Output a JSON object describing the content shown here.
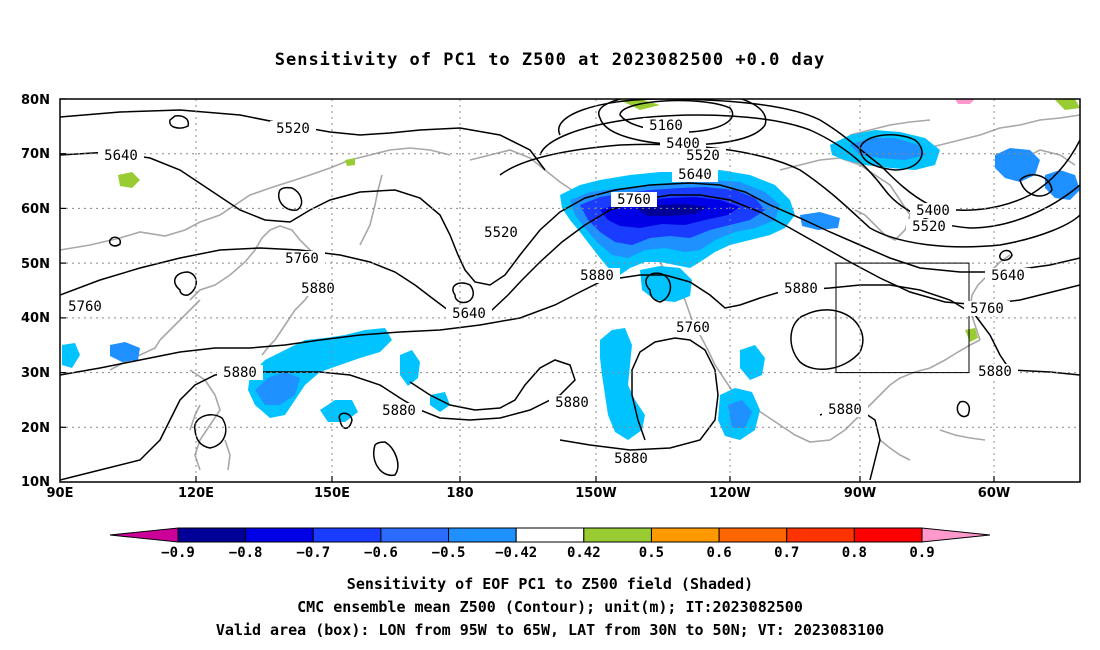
{
  "title": "Sensitivity of PC1 to Z500 at 2023082500 +0.0 day",
  "lat_labels": [
    "80N",
    "70N",
    "60N",
    "50N",
    "40N",
    "30N",
    "20N",
    "10N"
  ],
  "lon_labels": [
    "90E",
    "120E",
    "150E",
    "180",
    "150W",
    "120W",
    "90W",
    "60W"
  ],
  "contour_labels": [
    {
      "text": "5520"
    },
    {
      "text": "5640"
    },
    {
      "text": "5160"
    },
    {
      "text": "5400"
    },
    {
      "text": "5520"
    },
    {
      "text": "5640"
    },
    {
      "text": "5760"
    },
    {
      "text": "5520"
    },
    {
      "text": "5400"
    },
    {
      "text": "5520"
    },
    {
      "text": "5760"
    },
    {
      "text": "5880"
    },
    {
      "text": "5640"
    },
    {
      "text": "5880"
    },
    {
      "text": "5760"
    },
    {
      "text": "5760"
    },
    {
      "text": "5880"
    },
    {
      "text": "5640"
    },
    {
      "text": "5760"
    },
    {
      "text": "5880"
    },
    {
      "text": "5880"
    },
    {
      "text": "5880"
    },
    {
      "text": "5880"
    },
    {
      "text": "5880"
    },
    {
      "text": "5880"
    }
  ],
  "colorbar": {
    "labels": [
      "-0.9",
      "-0.8",
      "-0.7",
      "-0.6",
      "-0.5",
      "-0.42",
      "0.42",
      "0.5",
      "0.6",
      "0.7",
      "0.8",
      "0.9"
    ],
    "colors": [
      "#000099",
      "#0000e6",
      "#1a3cff",
      "#2b6cff",
      "#1e90ff",
      "#00c3ff",
      "#ffffff",
      "#99cc33",
      "#ff9900",
      "#ff6600",
      "#ff3300",
      "#ff0000"
    ],
    "low_color": "#cc0099",
    "high_color": "#ff99cc"
  },
  "footer": {
    "line1": "Sensitivity of EOF PC1 to Z500 field (Shaded)",
    "line2": "CMC ensemble mean Z500 (Contour); unit(m); IT:2023082500",
    "line3": "Valid area (box): LON from 95W to 65W, LAT from 30N to 50N; VT: 2023083100"
  }
}
